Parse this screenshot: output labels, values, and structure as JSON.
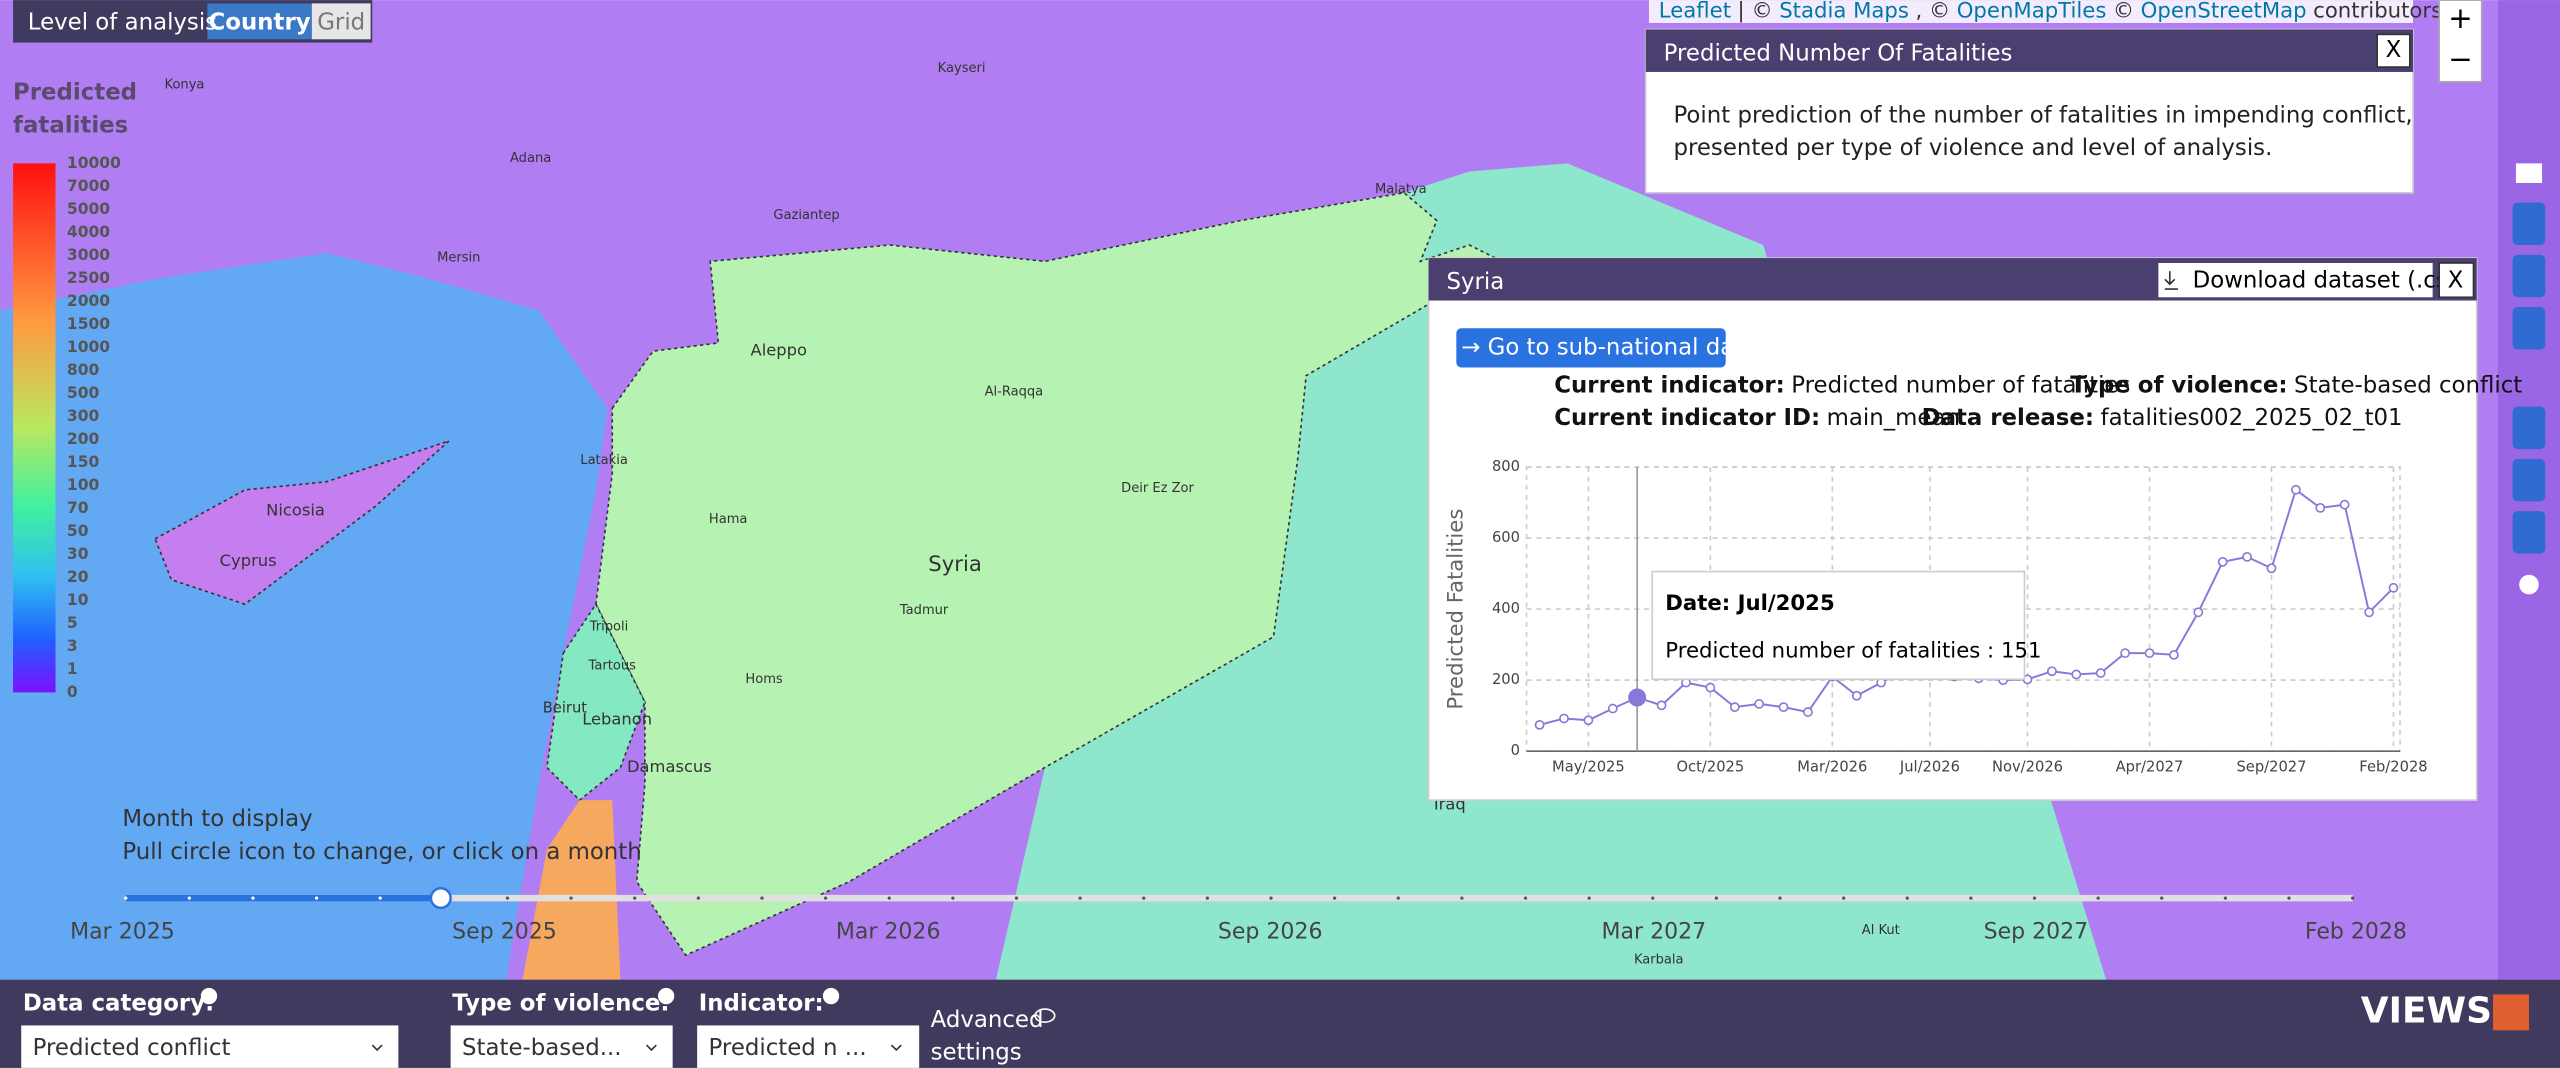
{
  "header": {
    "level_label": "Level of analysis",
    "options": [
      "Country",
      "Grid"
    ]
  },
  "attribution": [
    {
      "text": "Leaflet",
      "link": true
    },
    {
      "text": "| ©",
      "link": false
    },
    {
      "text": "Stadia Maps",
      "link": true
    },
    {
      "text": ", ©",
      "link": false
    },
    {
      "text": "OpenMapTiles",
      "link": true
    },
    {
      "text": "©",
      "link": false
    },
    {
      "text": "OpenStreetMap",
      "link": true
    },
    {
      "text": "contributors",
      "link": false
    }
  ],
  "zoom": [
    "+",
    "−"
  ],
  "legend": {
    "title": [
      "Predicted",
      "fatalities"
    ],
    "ticks": [
      "0",
      "1",
      "3",
      "5",
      "10",
      "20",
      "30",
      "50",
      "70",
      "100",
      "150",
      "200",
      "300",
      "500",
      "800",
      "1000",
      "1500",
      "2000",
      "2500",
      "3000",
      "4000",
      "5000",
      "7000",
      "10000"
    ]
  },
  "info_box": {
    "title": "Predicted Number Of Fatalities",
    "close": "X",
    "text": [
      "Point prediction of the number of fatalities in impending conflict,",
      "presented per type of violence and level of analysis."
    ]
  },
  "map": {
    "labels": [
      "Syria",
      "Aleppo",
      "Damascus",
      "Lebanon",
      "Beirut",
      "Cyprus",
      "Nicosia",
      "Iraq",
      "Hama",
      "Homs",
      "Latakia",
      "Tripoli",
      "Tartous",
      "Al-Raqqa",
      "Deir Ez Zor",
      "Tadmur",
      "Gaziantep",
      "Adana",
      "Mersin",
      "Konya",
      "Kayseri",
      "Malatya",
      "Karbala",
      "Al Kut"
    ]
  },
  "popup": {
    "title": "Syria",
    "download": "Download dataset (.csv)",
    "close": "X",
    "button": "→ Go to sub-national data",
    "meta": [
      {
        "label": "Current indicator:",
        "value": "Predicted number of fatalities"
      },
      {
        "label": "Type of violence:",
        "value": "State-based conflict"
      },
      {
        "label": "Current indicator ID:",
        "value": "main_mean"
      },
      {
        "label": "Data release:",
        "value": "fatalities002_2025_02_t01"
      }
    ],
    "tooltip": {
      "title": "Date: Jul/2025",
      "text": "Predicted number of fatalities : 151"
    }
  },
  "chart_data": {
    "type": "line",
    "y_label": "Predicted Fatalities",
    "color": "#8878d8",
    "categories": [
      null,
      null,
      "May/2025",
      null,
      null,
      null,
      null,
      "Oct/2025",
      null,
      null,
      null,
      null,
      "Mar/2026",
      null,
      null,
      null,
      "Jul/2026",
      null,
      null,
      null,
      "Nov/2026",
      null,
      null,
      null,
      null,
      "Apr/2027",
      null,
      null,
      null,
      null,
      "Sep/2027",
      null,
      null,
      null,
      null,
      "Feb/2028"
    ],
    "values": [
      74,
      92,
      87,
      120,
      151,
      129,
      193,
      179,
      124,
      133,
      124,
      110,
      210,
      156,
      193,
      230,
      220,
      210,
      205,
      200,
      202,
      225,
      216,
      220,
      276,
      276,
      271,
      391,
      533,
      547,
      515,
      736,
      685,
      694,
      391,
      460
    ],
    "ylim": [
      0,
      800
    ],
    "yticks": [
      0,
      200,
      400,
      600,
      800
    ],
    "grid": true
  },
  "slider": {
    "title": "Month to display",
    "hint": "Pull circle icon to change, or click on a month",
    "labels": [
      "Mar 2025",
      "Sep 2025",
      "Mar 2026",
      "Sep 2026",
      "Mar 2027",
      "Sep 2027",
      "Feb 2028"
    ]
  },
  "controls": {
    "category_label": "Data category:",
    "category_value": "Predicted conflict",
    "violence_label": "Type of violence:",
    "violence_value": "State-based...",
    "indicator_label": "Indicator:",
    "indicator_value": "Predicted n ...",
    "advanced": [
      "Advanced",
      "settings"
    ],
    "logo": "VIEWS"
  }
}
